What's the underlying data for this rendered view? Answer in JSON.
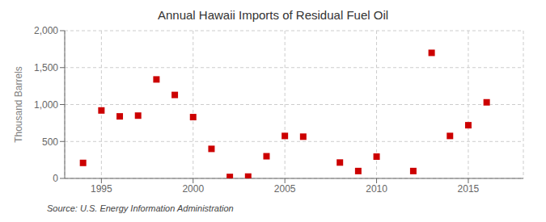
{
  "chart_data": {
    "type": "scatter",
    "title": "Annual Hawaii Imports of Residual Fuel Oil",
    "ylabel": "Thousand Barrels",
    "annotations": [
      "Source: U.S. Energy Information Administration"
    ],
    "x": [
      1994,
      1995,
      1996,
      1997,
      1998,
      1999,
      2000,
      2001,
      2002,
      2003,
      2004,
      2005,
      2006,
      2008,
      2009,
      2010,
      2012,
      2013,
      2014,
      2015,
      2016
    ],
    "values": [
      210,
      920,
      840,
      850,
      1340,
      1130,
      830,
      400,
      20,
      25,
      300,
      575,
      565,
      215,
      100,
      295,
      100,
      1700,
      575,
      720,
      1030
    ],
    "color": "#cc0000",
    "marker": "square",
    "xlim": [
      1993,
      2018
    ],
    "xticks": [
      1995,
      2000,
      2005,
      2010,
      2015
    ],
    "ylim": [
      0,
      2000
    ],
    "yticks": [
      0,
      500,
      {
        "value": 1000,
        "label": "1,000"
      },
      {
        "value": 1500,
        "label": "1,500"
      },
      {
        "value": 2000,
        "label": "2,000"
      }
    ],
    "grid": true
  }
}
